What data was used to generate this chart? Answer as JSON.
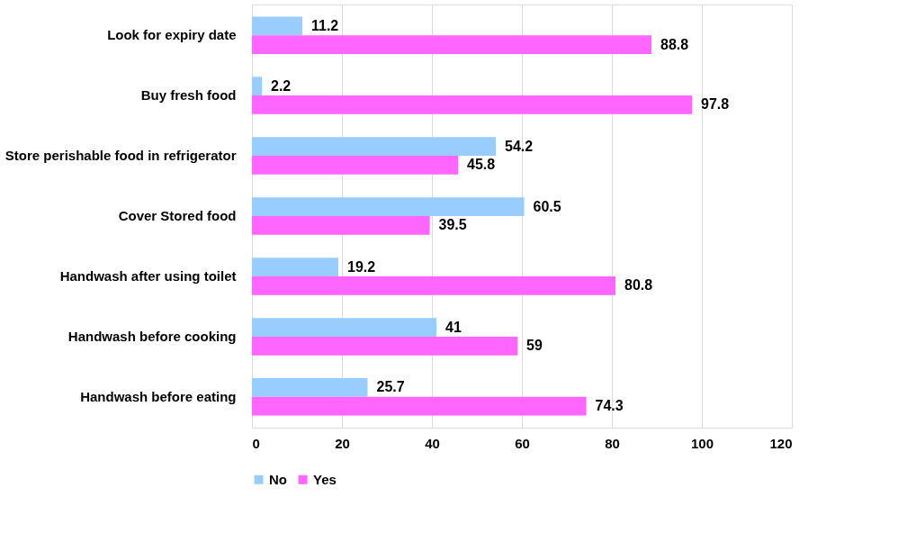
{
  "chart_data": {
    "type": "bar",
    "orientation": "horizontal",
    "categories": [
      "Look for expiry date",
      "Buy fresh food",
      "Store perishable food in refrigerator",
      "Cover Stored food",
      "Handwash after using toilet",
      "Handwash before cooking",
      "Handwash before eating"
    ],
    "series": [
      {
        "name": "No",
        "color": "#99ccff",
        "values": [
          11.2,
          2.2,
          54.2,
          60.5,
          19.2,
          41,
          25.7
        ]
      },
      {
        "name": "Yes",
        "color": "#ff66ff",
        "values": [
          88.8,
          97.8,
          45.8,
          39.5,
          80.8,
          59,
          74.3
        ]
      }
    ],
    "xlim": [
      0,
      120
    ],
    "xticks": [
      0,
      20,
      40,
      60,
      80,
      100,
      120
    ],
    "grid": "x",
    "legend": "bottom",
    "data_labels": true
  }
}
